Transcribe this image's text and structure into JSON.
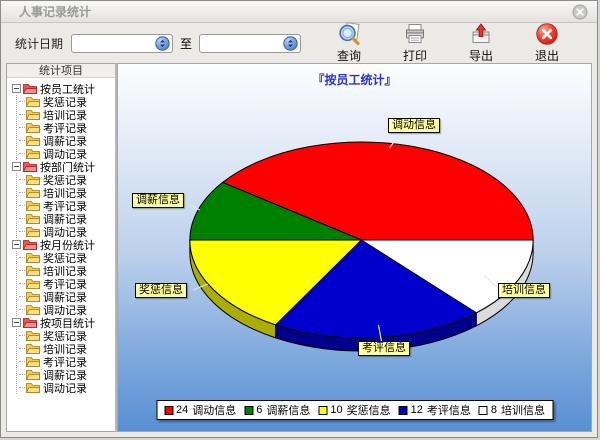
{
  "window": {
    "title": "人事记录统计"
  },
  "toolbar": {
    "date_label": "统计日期",
    "to_label": "至",
    "date_from_value": "",
    "date_to_value": "",
    "buttons": [
      {
        "label": "查询",
        "icon": "search-icon"
      },
      {
        "label": "打印",
        "icon": "printer-icon"
      },
      {
        "label": "导出",
        "icon": "export-icon"
      },
      {
        "label": "退出",
        "icon": "exit-icon"
      }
    ]
  },
  "sidebar": {
    "header": "统计项目",
    "groups": [
      {
        "label": "按员工统计",
        "children": [
          "奖惩记录",
          "培训记录",
          "考评记录",
          "调薪记录",
          "调动记录"
        ]
      },
      {
        "label": "按部门统计",
        "children": [
          "奖惩记录",
          "培训记录",
          "考评记录",
          "调薪记录",
          "调动记录"
        ]
      },
      {
        "label": "按月份统计",
        "children": [
          "奖惩记录",
          "培训记录",
          "考评记录",
          "调薪记录",
          "调动记录"
        ]
      },
      {
        "label": "按项目统计",
        "children": [
          "奖惩记录",
          "培训记录",
          "考评记录",
          "调薪记录",
          "调动记录"
        ]
      }
    ]
  },
  "chart_data": {
    "type": "pie",
    "style": "3d",
    "title": "『按员工统计』",
    "categories": [
      "调动信息",
      "调薪信息",
      "奖惩信息",
      "考评信息",
      "培训信息"
    ],
    "values": [
      24,
      6,
      10,
      12,
      8
    ],
    "colors": [
      "#FF0000",
      "#008000",
      "#FFFF00",
      "#0000CC",
      "#FFFFFF"
    ],
    "start_angle_deg": 0,
    "direction": "counterclockwise",
    "legend_position": "bottom"
  }
}
